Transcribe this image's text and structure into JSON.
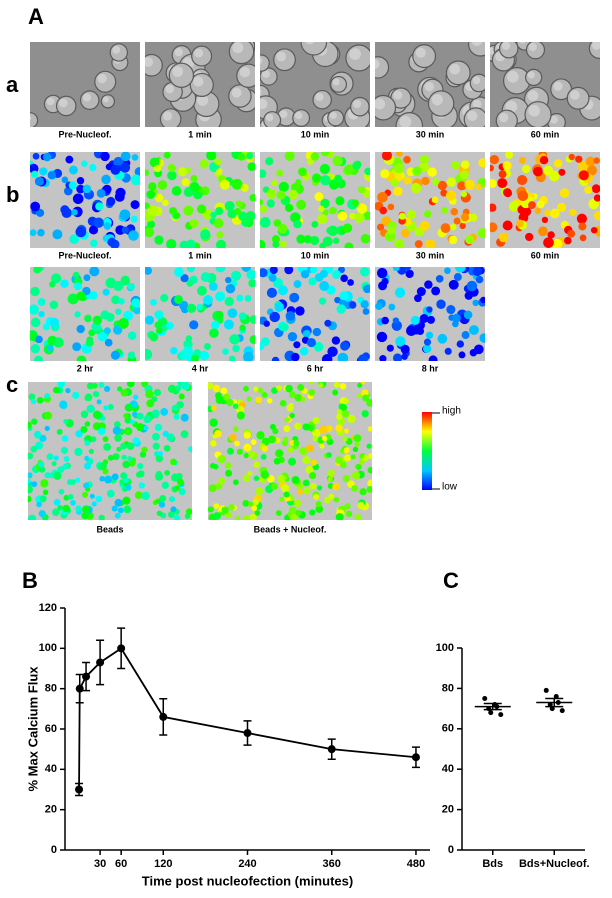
{
  "labels": {
    "A": "A",
    "a": "a",
    "b": "b",
    "c": "c",
    "B": "B",
    "C": "C"
  },
  "row_a": [
    "Pre-Nucleof.",
    "1 min",
    "10 min",
    "30 min",
    "60 min"
  ],
  "row_b": [
    "Pre-Nucleof.",
    "1 min",
    "10 min",
    "30 min",
    "60 min"
  ],
  "row_b2": [
    "2 hr",
    "4 hr",
    "6 hr",
    "8 hr"
  ],
  "row_c": [
    "Beads",
    "Beads + Nucleof."
  ],
  "colorbar": {
    "high": "high",
    "low": "low"
  },
  "chart_data": [
    {
      "type": "line",
      "ylabel": "% Max Calcium Flux",
      "xlabel": "Time post nucleofection (minutes)",
      "x": [
        0,
        1,
        10,
        30,
        60,
        120,
        240,
        360,
        480
      ],
      "values": [
        30,
        80,
        86,
        93,
        100,
        66,
        58,
        50,
        46
      ],
      "errors": [
        3,
        7,
        7,
        11,
        10,
        9,
        6,
        5,
        5
      ],
      "color": "#000000",
      "xlim": [
        -20,
        500
      ],
      "xticks": [
        30,
        60,
        120,
        240,
        360,
        480
      ],
      "ylim": [
        0,
        120
      ],
      "yticks": [
        0,
        20,
        40,
        60,
        80,
        100,
        120
      ]
    },
    {
      "type": "strip",
      "categories": [
        "Bds",
        "Bds+Nucleof."
      ],
      "points": [
        [
          75,
          72,
          71,
          70,
          68,
          67
        ],
        [
          79,
          76,
          73,
          72,
          70,
          69
        ]
      ],
      "means": [
        71,
        73
      ],
      "sem": [
        1.5,
        2
      ],
      "color": "#000000",
      "ylim": [
        0,
        100
      ],
      "yticks": [
        0,
        20,
        40,
        60,
        80,
        100
      ]
    }
  ]
}
